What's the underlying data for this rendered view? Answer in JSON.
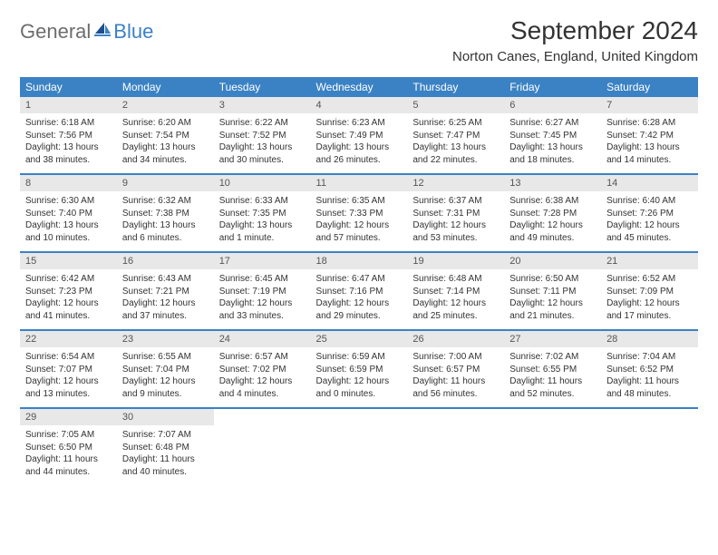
{
  "logo": {
    "general": "General",
    "blue": "Blue"
  },
  "header": {
    "title": "September 2024",
    "location": "Norton Canes, England, United Kingdom"
  },
  "colors": {
    "accent": "#3b82c4",
    "daynum_bg": "#e8e8e8",
    "text": "#333333",
    "logo_gray": "#6d6d6d"
  },
  "dayNames": [
    "Sunday",
    "Monday",
    "Tuesday",
    "Wednesday",
    "Thursday",
    "Friday",
    "Saturday"
  ],
  "weeks": [
    [
      {
        "n": "1",
        "sr": "Sunrise: 6:18 AM",
        "ss": "Sunset: 7:56 PM",
        "dl": "Daylight: 13 hours and 38 minutes."
      },
      {
        "n": "2",
        "sr": "Sunrise: 6:20 AM",
        "ss": "Sunset: 7:54 PM",
        "dl": "Daylight: 13 hours and 34 minutes."
      },
      {
        "n": "3",
        "sr": "Sunrise: 6:22 AM",
        "ss": "Sunset: 7:52 PM",
        "dl": "Daylight: 13 hours and 30 minutes."
      },
      {
        "n": "4",
        "sr": "Sunrise: 6:23 AM",
        "ss": "Sunset: 7:49 PM",
        "dl": "Daylight: 13 hours and 26 minutes."
      },
      {
        "n": "5",
        "sr": "Sunrise: 6:25 AM",
        "ss": "Sunset: 7:47 PM",
        "dl": "Daylight: 13 hours and 22 minutes."
      },
      {
        "n": "6",
        "sr": "Sunrise: 6:27 AM",
        "ss": "Sunset: 7:45 PM",
        "dl": "Daylight: 13 hours and 18 minutes."
      },
      {
        "n": "7",
        "sr": "Sunrise: 6:28 AM",
        "ss": "Sunset: 7:42 PM",
        "dl": "Daylight: 13 hours and 14 minutes."
      }
    ],
    [
      {
        "n": "8",
        "sr": "Sunrise: 6:30 AM",
        "ss": "Sunset: 7:40 PM",
        "dl": "Daylight: 13 hours and 10 minutes."
      },
      {
        "n": "9",
        "sr": "Sunrise: 6:32 AM",
        "ss": "Sunset: 7:38 PM",
        "dl": "Daylight: 13 hours and 6 minutes."
      },
      {
        "n": "10",
        "sr": "Sunrise: 6:33 AM",
        "ss": "Sunset: 7:35 PM",
        "dl": "Daylight: 13 hours and 1 minute."
      },
      {
        "n": "11",
        "sr": "Sunrise: 6:35 AM",
        "ss": "Sunset: 7:33 PM",
        "dl": "Daylight: 12 hours and 57 minutes."
      },
      {
        "n": "12",
        "sr": "Sunrise: 6:37 AM",
        "ss": "Sunset: 7:31 PM",
        "dl": "Daylight: 12 hours and 53 minutes."
      },
      {
        "n": "13",
        "sr": "Sunrise: 6:38 AM",
        "ss": "Sunset: 7:28 PM",
        "dl": "Daylight: 12 hours and 49 minutes."
      },
      {
        "n": "14",
        "sr": "Sunrise: 6:40 AM",
        "ss": "Sunset: 7:26 PM",
        "dl": "Daylight: 12 hours and 45 minutes."
      }
    ],
    [
      {
        "n": "15",
        "sr": "Sunrise: 6:42 AM",
        "ss": "Sunset: 7:23 PM",
        "dl": "Daylight: 12 hours and 41 minutes."
      },
      {
        "n": "16",
        "sr": "Sunrise: 6:43 AM",
        "ss": "Sunset: 7:21 PM",
        "dl": "Daylight: 12 hours and 37 minutes."
      },
      {
        "n": "17",
        "sr": "Sunrise: 6:45 AM",
        "ss": "Sunset: 7:19 PM",
        "dl": "Daylight: 12 hours and 33 minutes."
      },
      {
        "n": "18",
        "sr": "Sunrise: 6:47 AM",
        "ss": "Sunset: 7:16 PM",
        "dl": "Daylight: 12 hours and 29 minutes."
      },
      {
        "n": "19",
        "sr": "Sunrise: 6:48 AM",
        "ss": "Sunset: 7:14 PM",
        "dl": "Daylight: 12 hours and 25 minutes."
      },
      {
        "n": "20",
        "sr": "Sunrise: 6:50 AM",
        "ss": "Sunset: 7:11 PM",
        "dl": "Daylight: 12 hours and 21 minutes."
      },
      {
        "n": "21",
        "sr": "Sunrise: 6:52 AM",
        "ss": "Sunset: 7:09 PM",
        "dl": "Daylight: 12 hours and 17 minutes."
      }
    ],
    [
      {
        "n": "22",
        "sr": "Sunrise: 6:54 AM",
        "ss": "Sunset: 7:07 PM",
        "dl": "Daylight: 12 hours and 13 minutes."
      },
      {
        "n": "23",
        "sr": "Sunrise: 6:55 AM",
        "ss": "Sunset: 7:04 PM",
        "dl": "Daylight: 12 hours and 9 minutes."
      },
      {
        "n": "24",
        "sr": "Sunrise: 6:57 AM",
        "ss": "Sunset: 7:02 PM",
        "dl": "Daylight: 12 hours and 4 minutes."
      },
      {
        "n": "25",
        "sr": "Sunrise: 6:59 AM",
        "ss": "Sunset: 6:59 PM",
        "dl": "Daylight: 12 hours and 0 minutes."
      },
      {
        "n": "26",
        "sr": "Sunrise: 7:00 AM",
        "ss": "Sunset: 6:57 PM",
        "dl": "Daylight: 11 hours and 56 minutes."
      },
      {
        "n": "27",
        "sr": "Sunrise: 7:02 AM",
        "ss": "Sunset: 6:55 PM",
        "dl": "Daylight: 11 hours and 52 minutes."
      },
      {
        "n": "28",
        "sr": "Sunrise: 7:04 AM",
        "ss": "Sunset: 6:52 PM",
        "dl": "Daylight: 11 hours and 48 minutes."
      }
    ],
    [
      {
        "n": "29",
        "sr": "Sunrise: 7:05 AM",
        "ss": "Sunset: 6:50 PM",
        "dl": "Daylight: 11 hours and 44 minutes."
      },
      {
        "n": "30",
        "sr": "Sunrise: 7:07 AM",
        "ss": "Sunset: 6:48 PM",
        "dl": "Daylight: 11 hours and 40 minutes."
      },
      {
        "empty": true
      },
      {
        "empty": true
      },
      {
        "empty": true
      },
      {
        "empty": true
      },
      {
        "empty": true
      }
    ]
  ]
}
